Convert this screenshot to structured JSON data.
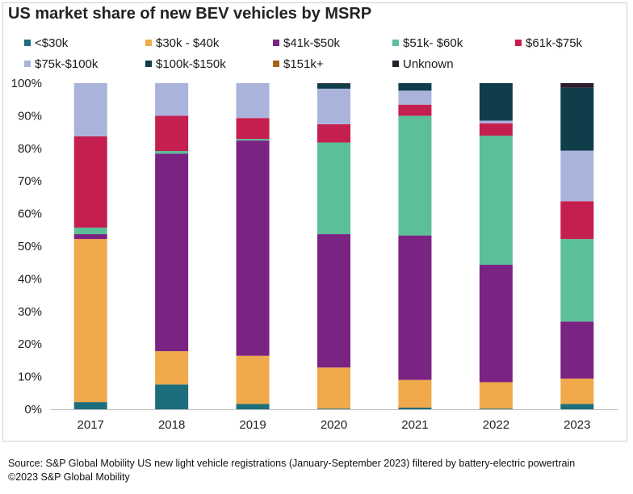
{
  "chart_data": {
    "type": "bar",
    "stacked": true,
    "title": "US market share of new BEV vehicles by MSRP",
    "categories": [
      "2017",
      "2018",
      "2019",
      "2020",
      "2021",
      "2022",
      "2023"
    ],
    "y_ticks": [
      "0%",
      "10%",
      "20%",
      "30%",
      "40%",
      "50%",
      "60%",
      "70%",
      "80%",
      "90%",
      "100%"
    ],
    "ylim": [
      0,
      100
    ],
    "legend_position": "top",
    "series": [
      {
        "name": "<$30k",
        "color": "#1c6e7d",
        "values": [
          2.2,
          7.6,
          1.6,
          0.2,
          0.5,
          0.2,
          1.6
        ]
      },
      {
        "name": "$30k - $40k",
        "color": "#f0a94b",
        "values": [
          50.0,
          10.2,
          14.8,
          12.6,
          8.5,
          8.1,
          7.8
        ]
      },
      {
        "name": "$41k-$50k",
        "color": "#7b2382",
        "values": [
          1.5,
          60.6,
          66.0,
          40.9,
          44.3,
          36.0,
          17.5
        ]
      },
      {
        "name": "$51k- $60k",
        "color": "#5bbf99",
        "values": [
          2.0,
          0.8,
          0.5,
          28.1,
          36.7,
          39.6,
          25.3
        ]
      },
      {
        "name": "$61k-$75k",
        "color": "#c51f4f",
        "values": [
          28.0,
          10.8,
          6.4,
          5.6,
          3.4,
          3.8,
          11.6
        ]
      },
      {
        "name": "$75k-$100k",
        "color": "#aab3dc",
        "values": [
          16.3,
          10.0,
          10.7,
          10.9,
          4.3,
          0.8,
          15.5
        ]
      },
      {
        "name": "$100k-$150k",
        "color": "#0f3e4a",
        "values": [
          0.0,
          0.0,
          0.0,
          1.5,
          2.3,
          11.5,
          19.3
        ]
      },
      {
        "name": "$151k+",
        "color": "#a7631a",
        "values": [
          0.0,
          0.0,
          0.0,
          0.0,
          0.0,
          0.0,
          0.0
        ]
      },
      {
        "name": "Unknown",
        "color": "#2a1d2e",
        "values": [
          0.0,
          0.0,
          0.0,
          0.2,
          0.0,
          0.0,
          1.4
        ]
      }
    ]
  },
  "source_line_1": "Source: S&P Global Mobility US new light vehicle registrations (January-September 2023) filtered by battery-electric powertrain",
  "source_line_2": "©2023 S&P Global Mobility"
}
